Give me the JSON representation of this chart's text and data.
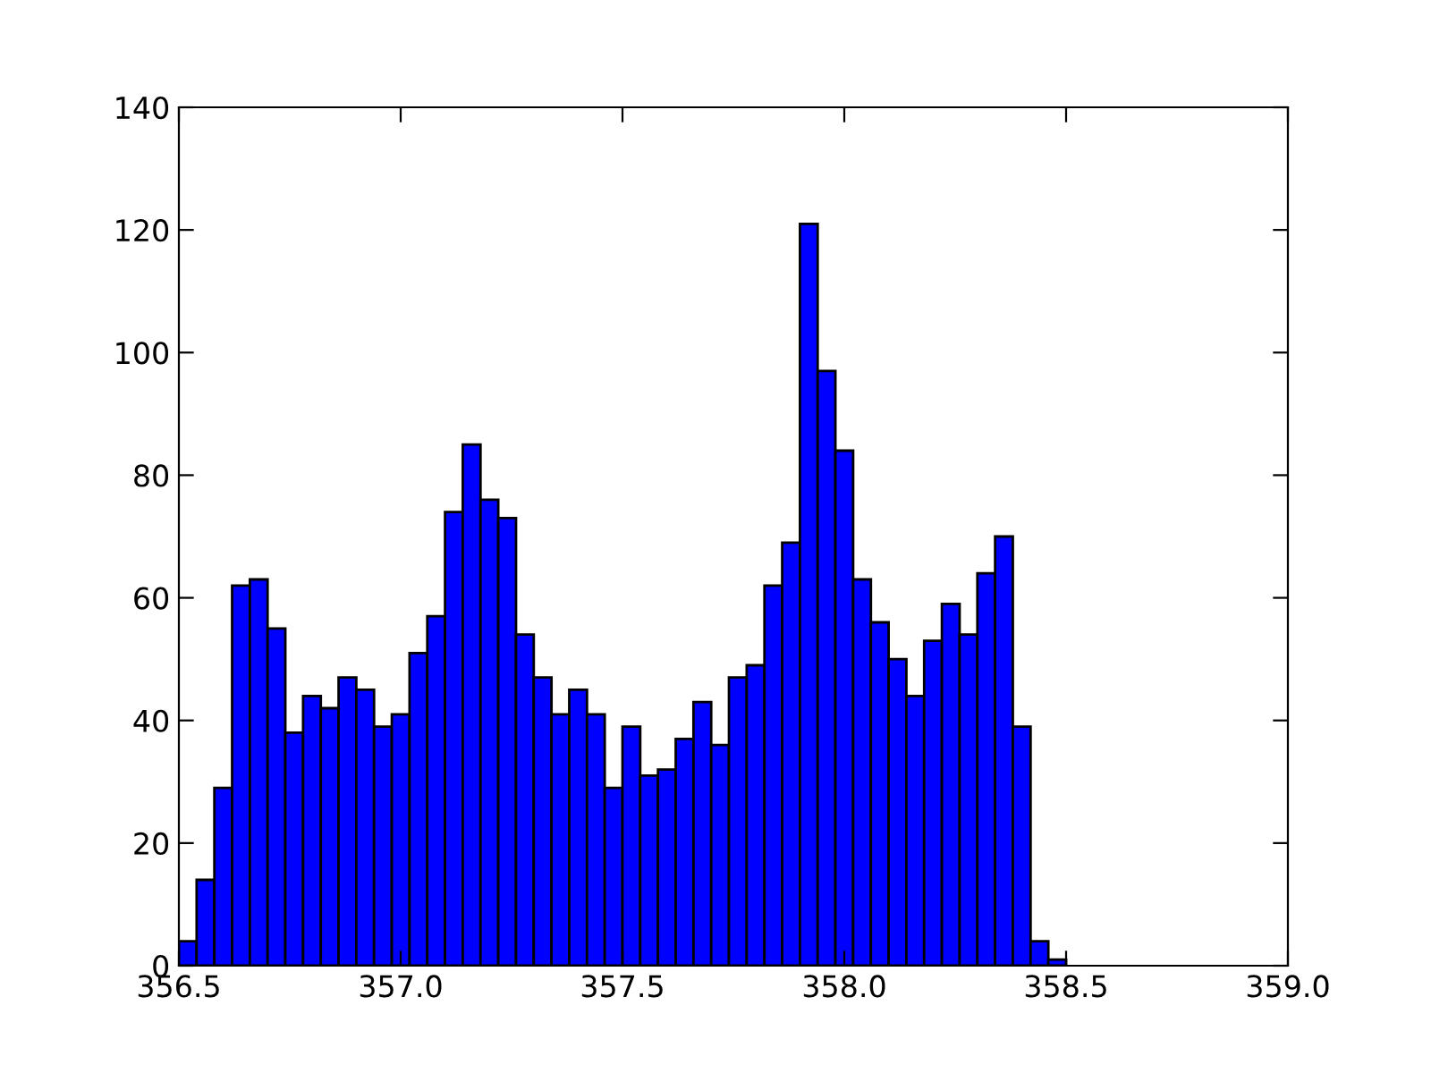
{
  "chart_data": {
    "type": "histogram",
    "bins": [
      356.5,
      356.54,
      356.58,
      356.62,
      356.66,
      356.7,
      356.74,
      356.78,
      356.82,
      356.86,
      356.9,
      356.94,
      356.98,
      357.02,
      357.06,
      357.1,
      357.14,
      357.18,
      357.22,
      357.26,
      357.3,
      357.34,
      357.38,
      357.42,
      357.46,
      357.5,
      357.54,
      357.58,
      357.62,
      357.66,
      357.7,
      357.74,
      357.78,
      357.82,
      357.86,
      357.9,
      357.94,
      357.98,
      358.02,
      358.06,
      358.1,
      358.14,
      358.18,
      358.22,
      358.26,
      358.3,
      358.34,
      358.38,
      358.42,
      358.46,
      358.5
    ],
    "values": [
      4,
      14,
      29,
      62,
      63,
      55,
      38,
      44,
      42,
      47,
      45,
      39,
      41,
      51,
      57,
      74,
      85,
      76,
      73,
      54,
      47,
      41,
      45,
      41,
      29,
      39,
      31,
      32,
      37,
      43,
      36,
      47,
      49,
      62,
      69,
      121,
      97,
      84,
      63,
      56,
      50,
      44,
      53,
      59,
      54,
      64,
      70,
      39,
      4,
      1
    ],
    "color": "#0000ff",
    "xlim": [
      356.5,
      359.0
    ],
    "xticks": [
      {
        "value": 356.5,
        "label": "356.5"
      },
      {
        "value": 357.0,
        "label": "357.0"
      },
      {
        "value": 357.5,
        "label": "357.5"
      },
      {
        "value": 358.0,
        "label": "358.0"
      },
      {
        "value": 358.5,
        "label": "358.5"
      },
      {
        "value": 359.0,
        "label": "359.0"
      }
    ],
    "ylim": [
      0,
      140
    ],
    "yticks": [
      0,
      20,
      40,
      60,
      80,
      100,
      120,
      140
    ],
    "grid": false
  }
}
